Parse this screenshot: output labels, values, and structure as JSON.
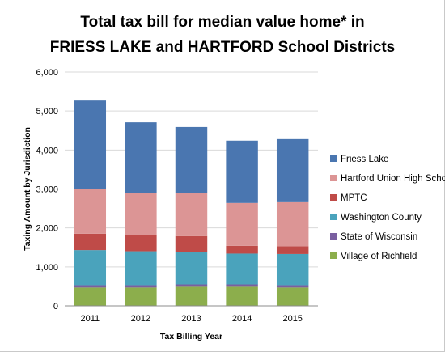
{
  "chart_data": {
    "type": "bar",
    "stacked": true,
    "title": "Total tax bill for median value home* in",
    "title_line2": "FRIESS LAKE and HARTFORD School Districts",
    "xlabel": "Tax Billing Year",
    "ylabel": "Taxing Amount by Jurisdiction",
    "ylim": [
      0,
      6000
    ],
    "yticks": [
      "0",
      "1,000",
      "2,000",
      "3,000",
      "4,000",
      "5,000",
      "6,000"
    ],
    "grid": true,
    "legend_position": "right",
    "categories": [
      "2011",
      "2012",
      "2013",
      "2014",
      "2015"
    ],
    "series": [
      {
        "name": "Village of Richfield",
        "color": "#8cae4c",
        "values": [
          470,
          470,
          490,
          490,
          470
        ]
      },
      {
        "name": "State of Wisconsin",
        "color": "#7a5fa0",
        "values": [
          60,
          60,
          60,
          60,
          60
        ]
      },
      {
        "name": "Washington County",
        "color": "#4aa3bc",
        "values": [
          900,
          870,
          820,
          790,
          800
        ]
      },
      {
        "name": "MPTC",
        "color": "#bf4b48",
        "values": [
          420,
          420,
          420,
          200,
          200
        ]
      },
      {
        "name": "Hartford Union High School",
        "color": "#dc9595",
        "values": [
          1150,
          1080,
          1100,
          1100,
          1130
        ]
      },
      {
        "name": "Friess Lake",
        "color": "#4a76b0",
        "values": [
          2270,
          1810,
          1700,
          1600,
          1620
        ]
      }
    ]
  }
}
